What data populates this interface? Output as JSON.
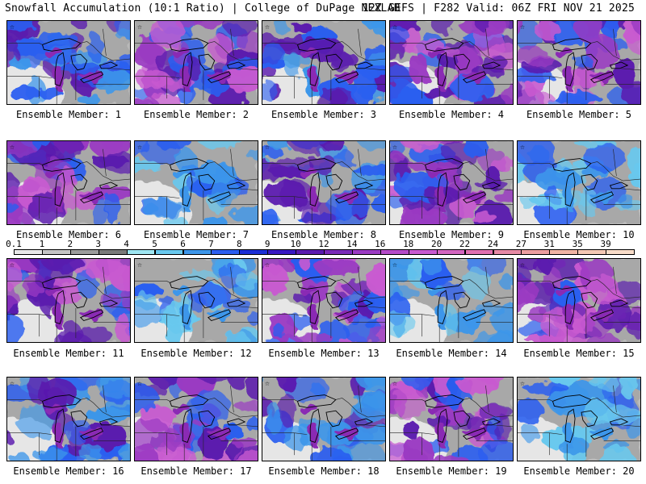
{
  "header": {
    "title": "Snowfall Accumulation (10:1 Ratio) | College of DuPage NEXLAB",
    "run_info": "12Z GEFS | F282 Valid: 06Z FRI NOV 21 2025"
  },
  "members": [
    {
      "label": "Ensemble Member: 1",
      "intensity": 2
    },
    {
      "label": "Ensemble Member: 2",
      "intensity": 3
    },
    {
      "label": "Ensemble Member: 3",
      "intensity": 2
    },
    {
      "label": "Ensemble Member: 4",
      "intensity": 3
    },
    {
      "label": "Ensemble Member: 5",
      "intensity": 3
    },
    {
      "label": "Ensemble Member: 6",
      "intensity": 3
    },
    {
      "label": "Ensemble Member: 7",
      "intensity": 1
    },
    {
      "label": "Ensemble Member: 8",
      "intensity": 2
    },
    {
      "label": "Ensemble Member: 9",
      "intensity": 3
    },
    {
      "label": "Ensemble Member: 10",
      "intensity": 1
    },
    {
      "label": "Ensemble Member: 11",
      "intensity": 3
    },
    {
      "label": "Ensemble Member: 12",
      "intensity": 1
    },
    {
      "label": "Ensemble Member: 13",
      "intensity": 3
    },
    {
      "label": "Ensemble Member: 14",
      "intensity": 1
    },
    {
      "label": "Ensemble Member: 15",
      "intensity": 3
    },
    {
      "label": "Ensemble Member: 16",
      "intensity": 2
    },
    {
      "label": "Ensemble Member: 17",
      "intensity": 3
    },
    {
      "label": "Ensemble Member: 18",
      "intensity": 2
    },
    {
      "label": "Ensemble Member: 19",
      "intensity": 3
    },
    {
      "label": "Ensemble Member: 20",
      "intensity": 1
    }
  ],
  "colorbar": {
    "labels": [
      "0.1",
      "1",
      "2",
      "3",
      "4",
      "5",
      "6",
      "7",
      "8",
      "9",
      "10",
      "12",
      "14",
      "16",
      "18",
      "20",
      "22",
      "24",
      "27",
      "31",
      "35",
      "39"
    ],
    "colors": [
      "#e8e8e8",
      "#c4c4c4",
      "#9c9c9c",
      "#7a7a7a",
      "#9ee6f2",
      "#68c8ee",
      "#3c96ea",
      "#2a5ef0",
      "#1a2ed6",
      "#3818c2",
      "#5a1aae",
      "#7a2ab8",
      "#9a3ac2",
      "#b44ac8",
      "#c85ad0",
      "#d466c0",
      "#e070b0",
      "#e68aa6",
      "#ec9ea0",
      "#f0b4a4",
      "#f4c8b4",
      "#f8dcc8"
    ]
  }
}
